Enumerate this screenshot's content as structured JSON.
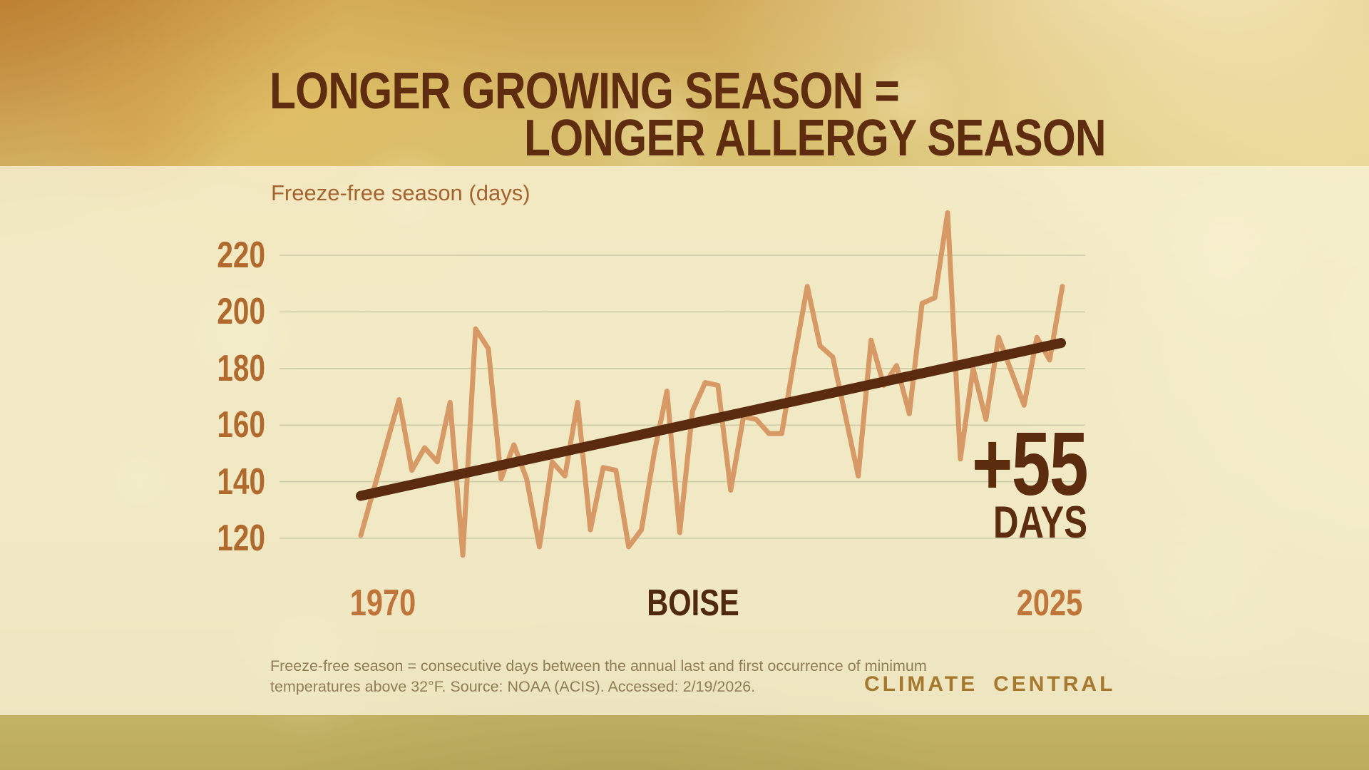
{
  "title": {
    "line1": "LONGER GROWING SEASON =",
    "line2": "LONGER ALLERGY SEASON"
  },
  "chart_data": {
    "type": "line",
    "ylabel": "Freeze-free season (days)",
    "location_label": "BOISE",
    "x_start_label": "1970",
    "x_end_label": "2025",
    "x_years": {
      "start": 1970,
      "end": 2025,
      "step": 1
    },
    "values": [
      121,
      137,
      153,
      169,
      144,
      152,
      147,
      168,
      114,
      194,
      187,
      141,
      153,
      141,
      117,
      147,
      142,
      168,
      123,
      145,
      144,
      117,
      123,
      150,
      172,
      122,
      165,
      175,
      174,
      137,
      163,
      162,
      157,
      157,
      184,
      209,
      188,
      184,
      163,
      142,
      190,
      174,
      181,
      164,
      203,
      205,
      235,
      148,
      180,
      162,
      191,
      179,
      167,
      191,
      183,
      209
    ],
    "y_ticks": [
      220,
      200,
      180,
      160,
      140,
      120
    ],
    "ylim": [
      108,
      238
    ],
    "grid": "on",
    "legend": "none",
    "trend": {
      "label": "+55",
      "sublabel": "DAYS",
      "total_change_days": 55,
      "start_value": 135,
      "end_value": 189
    }
  },
  "footnote": {
    "line1": "Freeze-free season = consecutive days between the annual last and first occurrence of minimum",
    "line2": "temperatures above 32°F. Source: NOAA (ACIS). Accessed: 2/19/2026."
  },
  "logo": {
    "left": "CLIMATE",
    "right": "CENTRAL"
  },
  "colors": {
    "title_brown": "#5e2d0f",
    "dark_brown": "#5a2b0e",
    "tick_orange": "#b16a2d",
    "year_orange": "#c0763a",
    "series_line": "#d79a66",
    "gridline": "#b4ba97",
    "panel_cream": "rgba(248,243,216,0.78)",
    "footnote_gray": "#8f7d55",
    "logo_brown": "#a6792f"
  }
}
